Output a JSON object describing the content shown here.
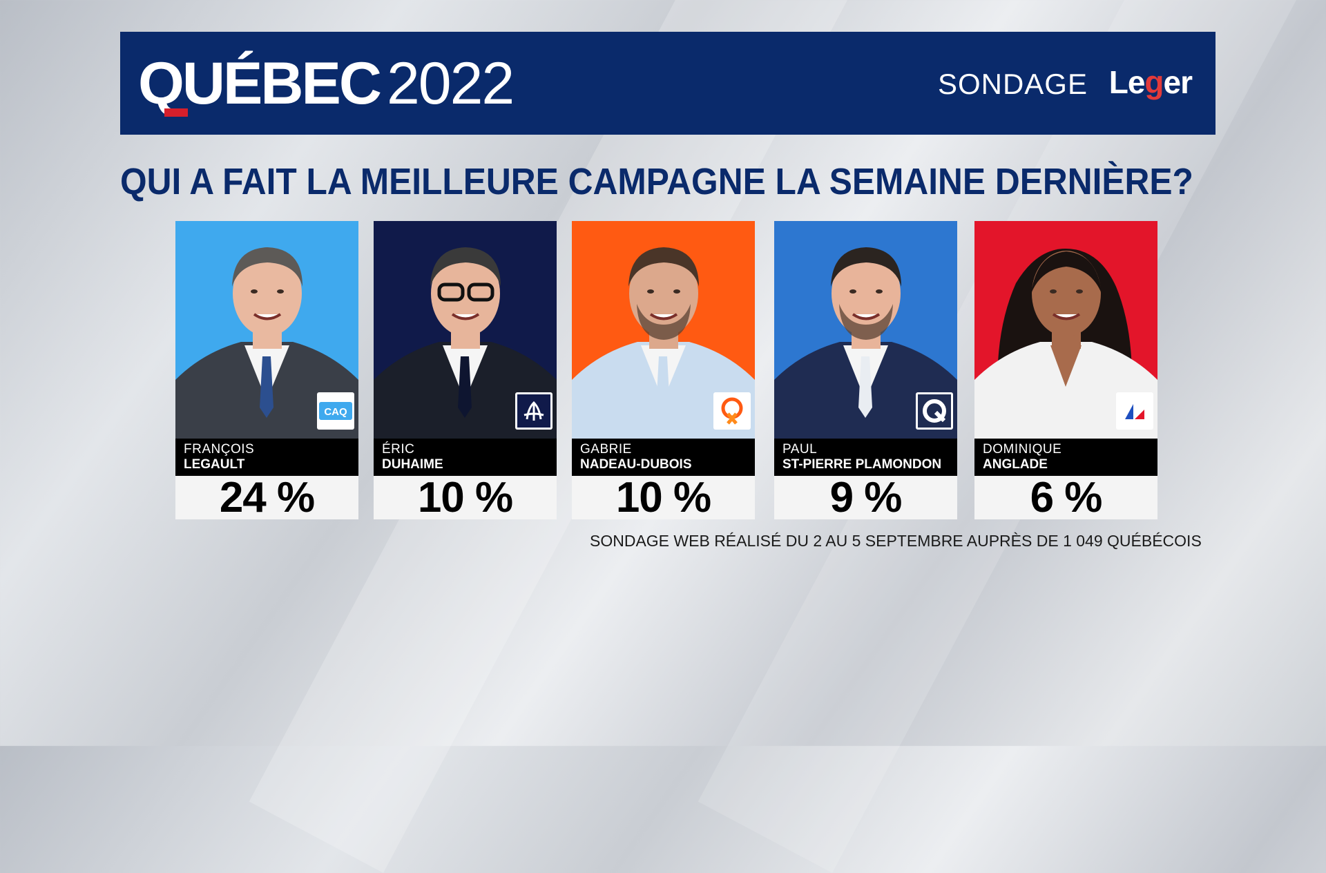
{
  "header": {
    "title_word": "QUÉBEC",
    "title_year": "2022",
    "sondage_label": "SONDAGE",
    "pollster_logo": "Leger",
    "title_accent_color": "#d61f2b",
    "background_color": "#0a2a6b"
  },
  "question": "QUI A FAIT LA MEILLEURE CAMPAGNE LA SEMAINE DERNIÈRE?",
  "candidates": [
    {
      "first": "FRANÇOIS",
      "last": "LEGAULT",
      "percent": "24 %",
      "value": 24,
      "party_logo": "CAQ",
      "bg": "#3fa9ee",
      "suit": "#3a3f48",
      "tie": "#2c4f8f",
      "skin": "#e9b9a0",
      "hair": "#5d5a57"
    },
    {
      "first": "ÉRIC",
      "last": "DUHAIME",
      "percent": "10 %",
      "value": 10,
      "party_logo": "fleur-de-lis-icon",
      "bg": "#101a4a",
      "suit": "#1b1f2a",
      "tie": "#0e1530",
      "skin": "#e7b59b",
      "hair": "#3a3a3a"
    },
    {
      "first": "GABRIE",
      "last": "NADEAU-DUBOIS",
      "percent": "10 %",
      "value": 10,
      "party_logo": "qs-star-icon",
      "bg": "#ff5a12",
      "suit": "#c9dcef",
      "tie": "#c9dcef",
      "skin": "#dca88c",
      "hair": "#4a3528"
    },
    {
      "first": "PAUL",
      "last": "ST-PIERRE PLAMONDON",
      "percent": "9 %",
      "value": 9,
      "party_logo": "pq-icon",
      "bg": "#2d77d0",
      "suit": "#1f2c52",
      "tie": "#e9edf2",
      "skin": "#e8b49a",
      "hair": "#2b2420"
    },
    {
      "first": "DOMINIQUE",
      "last": "ANGLADE",
      "percent": "6 %",
      "value": 6,
      "party_logo": "plq-icon",
      "bg": "#e3152a",
      "suit": "#f2f2f2",
      "tie": "#f2f2f2",
      "skin": "#a86b4c",
      "hair": "#1a1210"
    }
  ],
  "footnote": "SONDAGE WEB RÉALISÉ DU 2 AU 5 SEPTEMBRE AUPRÈS DE 1 049 QUÉBÉCOIS"
}
